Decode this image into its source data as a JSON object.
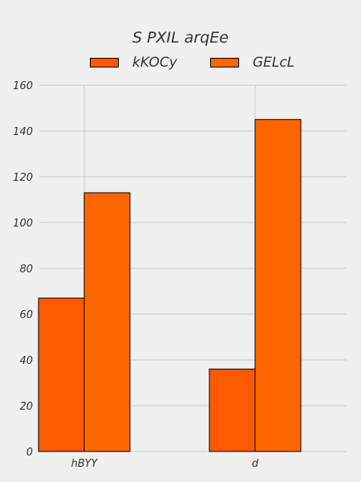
{
  "chart_data": {
    "type": "bar",
    "title": "S PXIL arqEe",
    "xlabel": "",
    "ylabel": "",
    "categories": [
      "hBYY",
      "d"
    ],
    "series": [
      {
        "name": "kKOCy",
        "values": [
          67,
          36
        ],
        "color": "#ff5a00"
      },
      {
        "name": "GELcL",
        "values": [
          113,
          145
        ],
        "color": "#ff6600"
      }
    ],
    "ylim": [
      0,
      160
    ],
    "yticks": [
      0,
      20,
      40,
      60,
      80,
      100,
      120,
      140,
      160
    ],
    "grid": true,
    "legend_position": "top-center"
  }
}
